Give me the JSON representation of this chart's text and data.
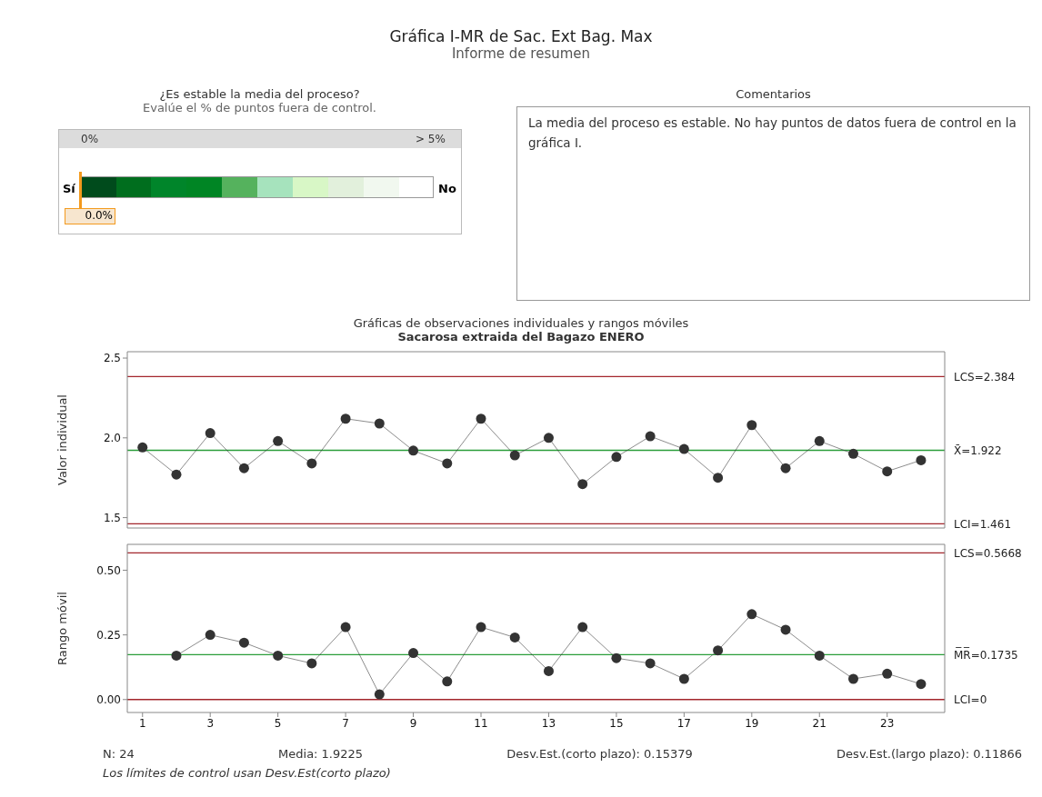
{
  "chart_data": [
    {
      "type": "other",
      "title": "Gráfica I-MR de Sac. Ext Bag. Max",
      "subtitle": "Informe de resumen"
    },
    {
      "type": "other",
      "title": "¿Es estable la media del proceso?",
      "subtitle": "Evalúe el % de puntos fuera de control.",
      "annotations": [
        "0%",
        "> 5%",
        "Sí",
        "No",
        "0.0%"
      ]
    },
    {
      "type": "other",
      "title": "Comentarios",
      "annotations": [
        "La media del proceso es estable. No hay puntos de datos fuera de control en la gráfica I."
      ]
    },
    {
      "type": "line",
      "title": "Gráficas de observaciones individuales y rangos móviles",
      "subtitle": "Sacarosa extraida del Bagazo ENERO",
      "ylabel": "Valor individual",
      "x": [
        1,
        2,
        3,
        4,
        5,
        6,
        7,
        8,
        9,
        10,
        11,
        12,
        13,
        14,
        15,
        16,
        17,
        18,
        19,
        20,
        21,
        22,
        23,
        24
      ],
      "series": [
        {
          "color": "#333333",
          "values": [
            1.94,
            1.77,
            2.03,
            1.81,
            1.98,
            1.84,
            2.12,
            2.09,
            1.92,
            1.84,
            2.12,
            1.89,
            2.0,
            1.71,
            1.88,
            2.01,
            1.93,
            1.75,
            2.08,
            1.81,
            1.98,
            1.9,
            1.79,
            1.86
          ]
        }
      ],
      "xlim": [
        0.55,
        24.7
      ],
      "xticks": [
        1,
        3,
        5,
        7,
        9,
        11,
        13,
        15,
        17,
        19,
        21,
        23
      ],
      "ylim": [
        1.435,
        2.54
      ],
      "yticks": [
        {
          "value": 1.5,
          "label": "1.5"
        },
        {
          "value": 2,
          "label": "2.0"
        },
        {
          "value": 2.5,
          "label": "2.5"
        }
      ],
      "tick_labels": "y",
      "marker": "circle",
      "ref_lines": [
        {
          "axis": "y",
          "value": 2.384,
          "label": "LCS=2.384",
          "color": "#a3262c"
        },
        {
          "axis": "y",
          "value": 1.922,
          "label": "X̄=1.922",
          "color": "#2a9d3a"
        },
        {
          "axis": "y",
          "value": 1.461,
          "label": "LCI=1.461",
          "color": "#a3262c"
        }
      ]
    },
    {
      "type": "line",
      "ylabel": "Rango móvil",
      "series": [
        {
          "color": "#333333",
          "x": [
            2,
            3,
            4,
            5,
            6,
            7,
            8,
            9,
            10,
            11,
            12,
            13,
            14,
            15,
            16,
            17,
            18,
            19,
            20,
            21,
            22,
            23,
            24
          ],
          "values": [
            0.17,
            0.25,
            0.22,
            0.17,
            0.14,
            0.28,
            0.02,
            0.18,
            0.07,
            0.28,
            0.24,
            0.11,
            0.28,
            0.16,
            0.14,
            0.08,
            0.19,
            0.33,
            0.27,
            0.17,
            0.08,
            0.1,
            0.06
          ]
        }
      ],
      "xlim": [
        0.55,
        24.7
      ],
      "xticks": [
        1,
        3,
        5,
        7,
        9,
        11,
        13,
        15,
        17,
        19,
        21,
        23
      ],
      "ylim": [
        -0.05,
        0.6
      ],
      "yticks": [
        {
          "value": 0,
          "label": "0.00"
        },
        {
          "value": 0.25,
          "label": "0.25"
        },
        {
          "value": 0.5,
          "label": "0.50"
        }
      ],
      "marker": "circle",
      "ref_lines": [
        {
          "axis": "y",
          "value": 0.5668,
          "label": "LCS=0.5668",
          "color": "#a3262c"
        },
        {
          "axis": "y",
          "value": 0.1735,
          "label": "M̅R̅=0.1735",
          "color": "#2a9d3a"
        },
        {
          "axis": "y",
          "value": 0,
          "label": "LCI=0",
          "color": "#a3262c"
        }
      ],
      "annotations": [
        "N: 24",
        "Media: 1.9225",
        "Desv.Est.(corto plazo): 0.15379",
        "Desv.Est.(largo plazo): 0.11866",
        "Los límites de control usan Desv.Est(corto plazo)"
      ]
    }
  ]
}
